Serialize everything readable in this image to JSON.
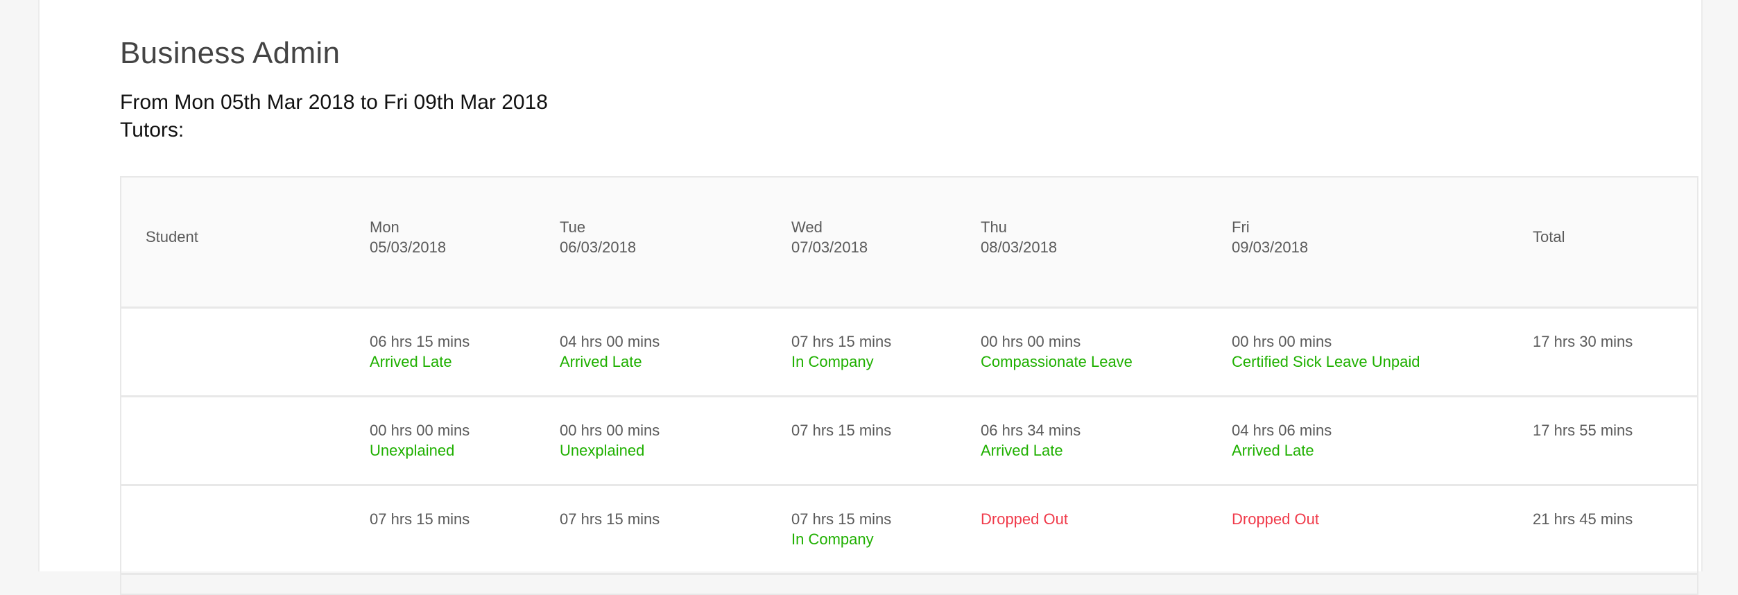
{
  "page": {
    "title": "Business Admin",
    "date_range": "From Mon 05th Mar 2018 to Fri 09th Mar 2018",
    "tutors_label": "Tutors:"
  },
  "colors": {
    "text": "#5a5a5a",
    "status_ok": "#1fb000",
    "status_bad": "#f03a4a"
  },
  "table": {
    "headers": [
      {
        "day": "Student",
        "date": ""
      },
      {
        "day": "Mon",
        "date": "05/03/2018"
      },
      {
        "day": "Tue",
        "date": "06/03/2018"
      },
      {
        "day": "Wed",
        "date": "07/03/2018"
      },
      {
        "day": "Thu",
        "date": "08/03/2018"
      },
      {
        "day": "Fri",
        "date": "09/03/2018"
      },
      {
        "day": "Total",
        "date": ""
      }
    ],
    "rows": [
      {
        "student": "",
        "days": [
          {
            "hours": "06 hrs 15 mins",
            "status": "Arrived Late",
            "status_type": "ok"
          },
          {
            "hours": "04 hrs 00 mins",
            "status": "Arrived Late",
            "status_type": "ok"
          },
          {
            "hours": "07 hrs 15 mins",
            "status": "In Company",
            "status_type": "ok"
          },
          {
            "hours": "00 hrs 00 mins",
            "status": "Compassionate Leave",
            "status_type": "ok"
          },
          {
            "hours": "00 hrs 00 mins",
            "status": "Certified Sick Leave Unpaid",
            "status_type": "ok"
          }
        ],
        "total": "17 hrs 30 mins"
      },
      {
        "student": "",
        "days": [
          {
            "hours": "00 hrs 00 mins",
            "status": "Unexplained",
            "status_type": "ok"
          },
          {
            "hours": "00 hrs 00 mins",
            "status": "Unexplained",
            "status_type": "ok"
          },
          {
            "hours": "07 hrs 15 mins",
            "status": "",
            "status_type": "ok"
          },
          {
            "hours": "06 hrs 34 mins",
            "status": "Arrived Late",
            "status_type": "ok"
          },
          {
            "hours": "04 hrs 06 mins",
            "status": "Arrived Late",
            "status_type": "ok"
          }
        ],
        "total": "17 hrs 55 mins"
      },
      {
        "student": "",
        "days": [
          {
            "hours": "07 hrs 15 mins",
            "status": "",
            "status_type": "ok"
          },
          {
            "hours": "07 hrs 15 mins",
            "status": "",
            "status_type": "ok"
          },
          {
            "hours": "07 hrs 15 mins",
            "status": "In Company",
            "status_type": "ok"
          },
          {
            "hours": "",
            "status": "Dropped Out",
            "status_type": "bad"
          },
          {
            "hours": "",
            "status": "Dropped Out",
            "status_type": "bad"
          }
        ],
        "total": "21 hrs 45 mins"
      }
    ]
  }
}
